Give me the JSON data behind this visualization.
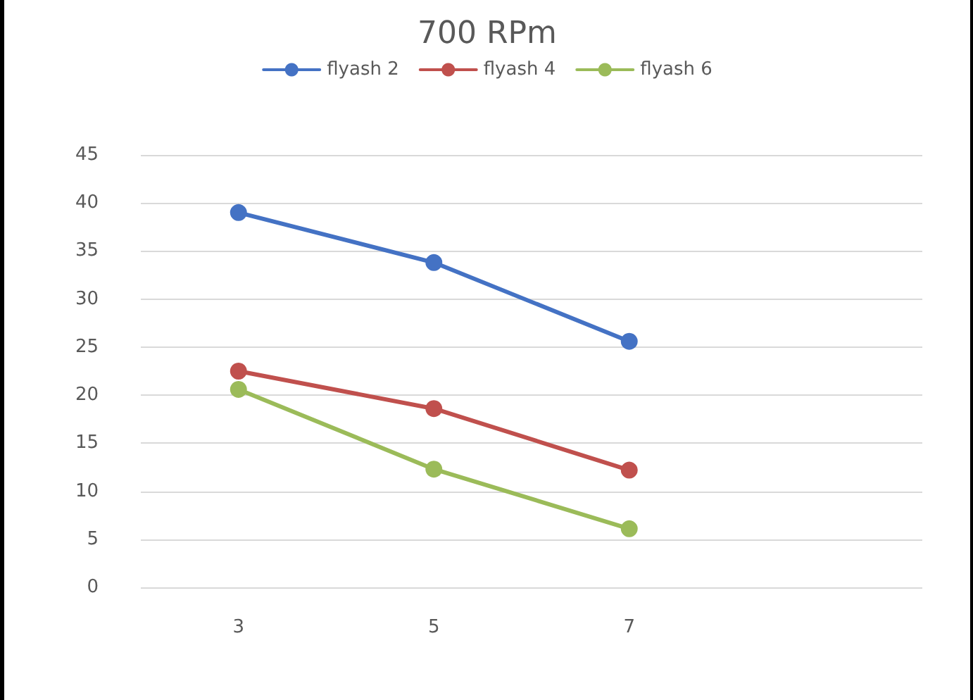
{
  "chart_data": {
    "type": "line",
    "title": "700 RPm",
    "categories": [
      "3",
      "5",
      "7",
      null
    ],
    "series": [
      {
        "name": "flyash 2",
        "color": "#4472c4",
        "values": [
          39.0,
          33.8,
          25.6,
          null
        ]
      },
      {
        "name": "flyash 4",
        "color": "#c0504d",
        "values": [
          22.5,
          18.6,
          12.2,
          null
        ]
      },
      {
        "name": "flyash 6",
        "color": "#9bbb59",
        "values": [
          20.6,
          12.3,
          6.1,
          null
        ]
      }
    ],
    "ylim": [
      0,
      45
    ],
    "yticks": [
      0,
      5,
      10,
      15,
      20,
      25,
      30,
      35,
      40,
      45
    ],
    "grid": "y",
    "legend": "top",
    "marker": "circle",
    "line_style": "solid"
  }
}
